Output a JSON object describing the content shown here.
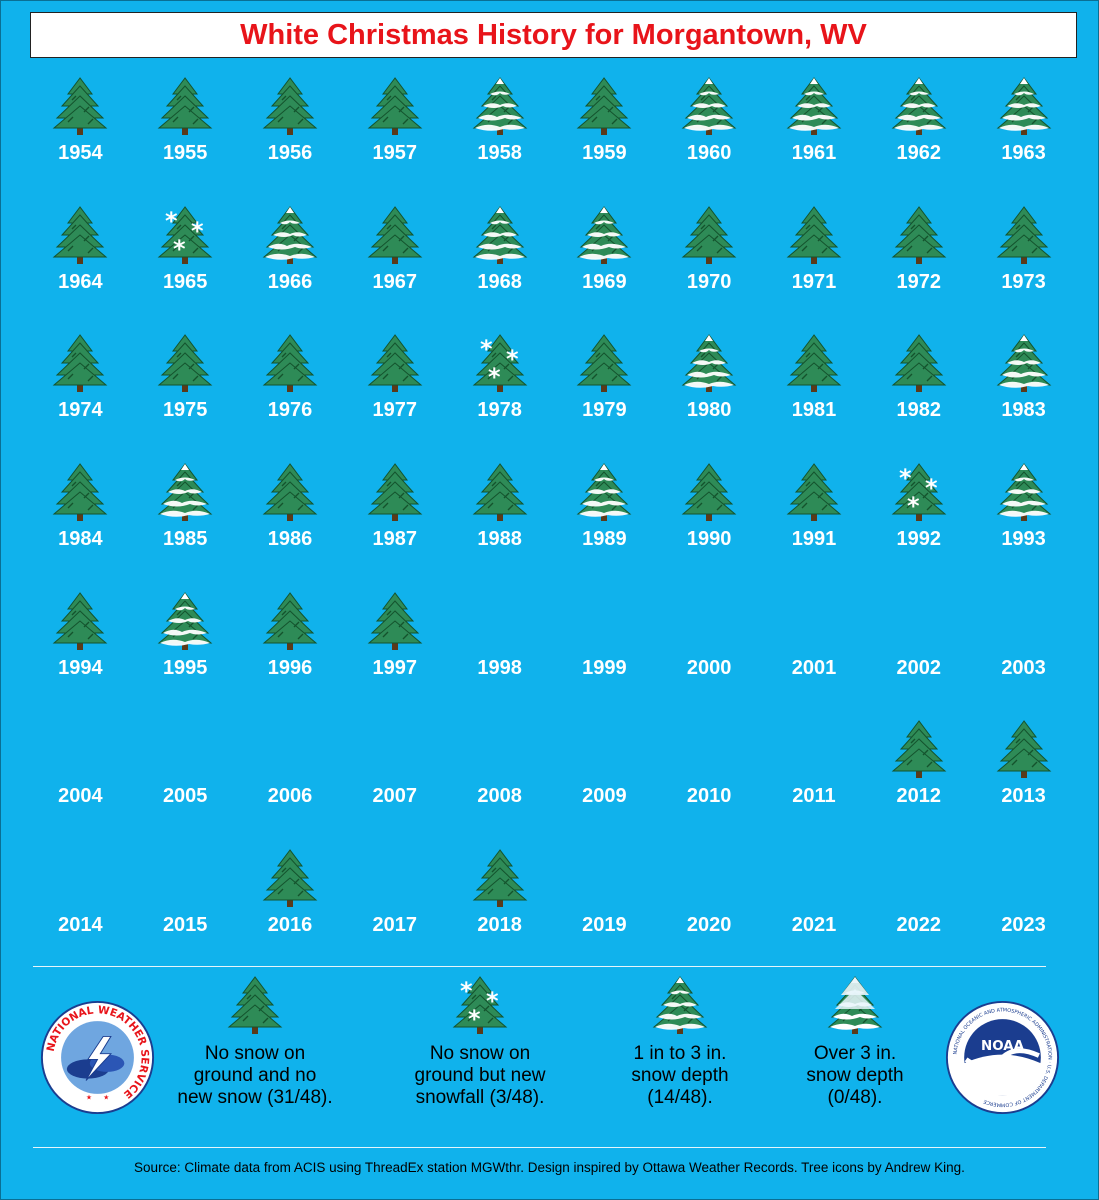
{
  "title": "White Christmas History for Morgantown, WV",
  "colors": {
    "background": "#10b2ec",
    "title_text": "#e8141a",
    "tree_green": "#2e8b57",
    "tree_dark": "#14532d",
    "snow": "#ffffff"
  },
  "years": [
    {
      "year": "1954",
      "category": "no-snow-tree-icon"
    },
    {
      "year": "1955",
      "category": "no-snow-tree-icon"
    },
    {
      "year": "1956",
      "category": "no-snow-tree-icon"
    },
    {
      "year": "1957",
      "category": "no-snow-tree-icon"
    },
    {
      "year": "1958",
      "category": "light-snow-tree-icon"
    },
    {
      "year": "1959",
      "category": "no-snow-tree-icon"
    },
    {
      "year": "1960",
      "category": "light-snow-tree-icon"
    },
    {
      "year": "1961",
      "category": "light-snow-tree-icon"
    },
    {
      "year": "1962",
      "category": "light-snow-tree-icon"
    },
    {
      "year": "1963",
      "category": "light-snow-tree-icon"
    },
    {
      "year": "1964",
      "category": "no-snow-tree-icon"
    },
    {
      "year": "1965",
      "category": "snowfall-tree-icon"
    },
    {
      "year": "1966",
      "category": "light-snow-tree-icon"
    },
    {
      "year": "1967",
      "category": "no-snow-tree-icon"
    },
    {
      "year": "1968",
      "category": "light-snow-tree-icon"
    },
    {
      "year": "1969",
      "category": "light-snow-tree-icon"
    },
    {
      "year": "1970",
      "category": "no-snow-tree-icon"
    },
    {
      "year": "1971",
      "category": "no-snow-tree-icon"
    },
    {
      "year": "1972",
      "category": "no-snow-tree-icon"
    },
    {
      "year": "1973",
      "category": "no-snow-tree-icon"
    },
    {
      "year": "1974",
      "category": "no-snow-tree-icon"
    },
    {
      "year": "1975",
      "category": "no-snow-tree-icon"
    },
    {
      "year": "1976",
      "category": "no-snow-tree-icon"
    },
    {
      "year": "1977",
      "category": "no-snow-tree-icon"
    },
    {
      "year": "1978",
      "category": "snowfall-tree-icon"
    },
    {
      "year": "1979",
      "category": "no-snow-tree-icon"
    },
    {
      "year": "1980",
      "category": "light-snow-tree-icon"
    },
    {
      "year": "1981",
      "category": "no-snow-tree-icon"
    },
    {
      "year": "1982",
      "category": "no-snow-tree-icon"
    },
    {
      "year": "1983",
      "category": "light-snow-tree-icon"
    },
    {
      "year": "1984",
      "category": "no-snow-tree-icon"
    },
    {
      "year": "1985",
      "category": "light-snow-tree-icon"
    },
    {
      "year": "1986",
      "category": "no-snow-tree-icon"
    },
    {
      "year": "1987",
      "category": "no-snow-tree-icon"
    },
    {
      "year": "1988",
      "category": "no-snow-tree-icon"
    },
    {
      "year": "1989",
      "category": "light-snow-tree-icon"
    },
    {
      "year": "1990",
      "category": "no-snow-tree-icon"
    },
    {
      "year": "1991",
      "category": "no-snow-tree-icon"
    },
    {
      "year": "1992",
      "category": "snowfall-tree-icon"
    },
    {
      "year": "1993",
      "category": "light-snow-tree-icon"
    },
    {
      "year": "1994",
      "category": "no-snow-tree-icon"
    },
    {
      "year": "1995",
      "category": "light-snow-tree-icon"
    },
    {
      "year": "1996",
      "category": "no-snow-tree-icon"
    },
    {
      "year": "1997",
      "category": "no-snow-tree-icon"
    },
    {
      "year": "1998",
      "category": "none"
    },
    {
      "year": "1999",
      "category": "none"
    },
    {
      "year": "2000",
      "category": "none"
    },
    {
      "year": "2001",
      "category": "none"
    },
    {
      "year": "2002",
      "category": "none"
    },
    {
      "year": "2003",
      "category": "none"
    },
    {
      "year": "2004",
      "category": "none"
    },
    {
      "year": "2005",
      "category": "none"
    },
    {
      "year": "2006",
      "category": "none"
    },
    {
      "year": "2007",
      "category": "none"
    },
    {
      "year": "2008",
      "category": "none"
    },
    {
      "year": "2009",
      "category": "none"
    },
    {
      "year": "2010",
      "category": "none"
    },
    {
      "year": "2011",
      "category": "none"
    },
    {
      "year": "2012",
      "category": "no-snow-tree-icon"
    },
    {
      "year": "2013",
      "category": "no-snow-tree-icon"
    },
    {
      "year": "2014",
      "category": "none"
    },
    {
      "year": "2015",
      "category": "none"
    },
    {
      "year": "2016",
      "category": "no-snow-tree-icon"
    },
    {
      "year": "2017",
      "category": "none"
    },
    {
      "year": "2018",
      "category": "no-snow-tree-icon"
    },
    {
      "year": "2019",
      "category": "none"
    },
    {
      "year": "2020",
      "category": "none"
    },
    {
      "year": "2021",
      "category": "none"
    },
    {
      "year": "2022",
      "category": "none"
    },
    {
      "year": "2023",
      "category": "none"
    }
  ],
  "legend": [
    {
      "icon": "no-snow-tree-icon",
      "text": "No snow on\nground and no\nnew snow (31/48)."
    },
    {
      "icon": "snowfall-tree-icon",
      "text": "No snow on\nground but new\nsnowfall (3/48)."
    },
    {
      "icon": "light-snow-tree-icon",
      "text": "1 in to 3 in.\nsnow depth\n(14/48)."
    },
    {
      "icon": "heavy-snow-tree-icon",
      "text": "Over 3 in.\nsnow depth\n(0/48)."
    }
  ],
  "logos": {
    "nws": {
      "text": "NATIONAL WEATHER SERVICE",
      "icon": "nws-logo-icon"
    },
    "noaa": {
      "text": "NOAA",
      "ring_text": "NATIONAL OCEANIC AND ATMOSPHERIC ADMINISTRATION · U.S. DEPARTMENT OF COMMERCE",
      "icon": "noaa-logo-icon"
    }
  },
  "source": "Source: Climate data from ACIS using ThreadEx station MGWthr. Design inspired by Ottawa Weather Records. Tree icons by Andrew King."
}
